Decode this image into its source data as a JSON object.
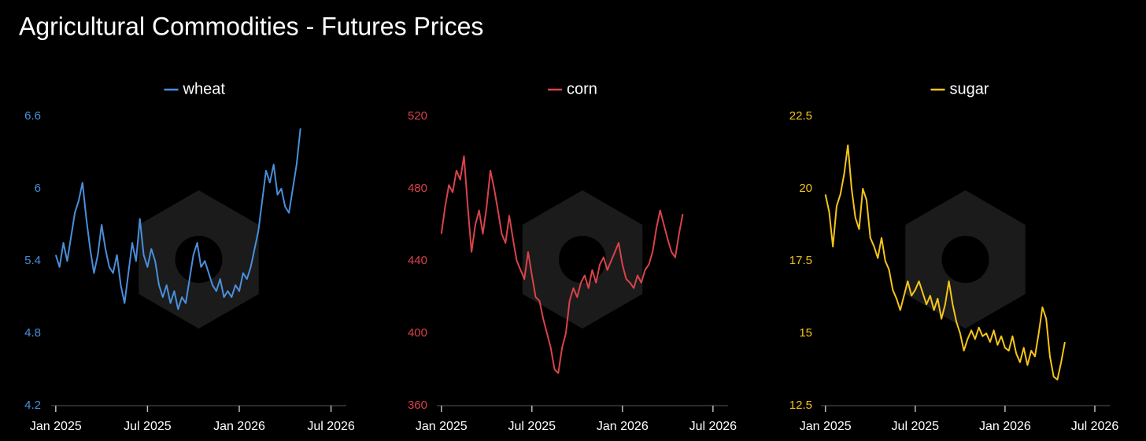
{
  "title": "Agricultural Commodities - Futures Prices",
  "chart_data": [
    {
      "type": "line",
      "x": [
        0,
        0.25,
        0.5,
        0.75,
        1,
        1.25,
        1.5,
        1.75,
        2,
        2.25,
        2.5,
        2.75,
        3,
        3.25,
        3.5,
        3.75,
        4,
        4.25,
        4.5,
        4.75,
        5,
        5.25,
        5.5,
        5.75,
        6,
        6.25,
        6.5,
        6.75,
        7,
        7.25,
        7.5,
        7.75,
        8,
        8.25,
        8.5,
        8.75,
        9,
        9.25,
        9.5,
        9.75,
        10,
        10.25,
        10.5,
        10.75,
        11,
        11.25,
        11.5,
        11.75,
        12,
        12.25,
        12.5,
        12.75,
        13,
        13.25,
        13.5,
        13.75,
        14,
        14.25,
        14.5,
        14.75,
        15,
        15.25,
        15.5,
        15.75,
        16
      ],
      "series": [
        {
          "name": "wheat",
          "color": "#4a8fdb",
          "values": [
            5.45,
            5.35,
            5.55,
            5.4,
            5.6,
            5.8,
            5.9,
            6.05,
            5.75,
            5.5,
            5.3,
            5.45,
            5.7,
            5.5,
            5.35,
            5.3,
            5.45,
            5.2,
            5.05,
            5.3,
            5.55,
            5.4,
            5.75,
            5.45,
            5.35,
            5.5,
            5.4,
            5.2,
            5.1,
            5.2,
            5.05,
            5.15,
            5.0,
            5.1,
            5.05,
            5.25,
            5.45,
            5.55,
            5.35,
            5.4,
            5.3,
            5.2,
            5.15,
            5.25,
            5.1,
            5.15,
            5.1,
            5.2,
            5.15,
            5.3,
            5.25,
            5.35,
            5.5,
            5.65,
            5.9,
            6.15,
            6.05,
            6.2,
            5.95,
            6.0,
            5.85,
            5.8,
            6.0,
            6.2,
            6.5
          ]
        }
      ],
      "xlim": [
        -0.3,
        19
      ],
      "xticks": [
        {
          "value": 0,
          "label": "Jan 2025"
        },
        {
          "value": 6,
          "label": "Jul 2025"
        },
        {
          "value": 12,
          "label": "Jan 2026"
        },
        {
          "value": 18,
          "label": "Jul 2026"
        }
      ],
      "ylim": [
        4.2,
        6.6
      ],
      "yticks": [
        4.2,
        4.8,
        5.4,
        6,
        6.6
      ]
    },
    {
      "type": "line",
      "x": [
        0,
        0.25,
        0.5,
        0.75,
        1,
        1.25,
        1.5,
        1.75,
        2,
        2.25,
        2.5,
        2.75,
        3,
        3.25,
        3.5,
        3.75,
        4,
        4.25,
        4.5,
        4.75,
        5,
        5.25,
        5.5,
        5.75,
        6,
        6.25,
        6.5,
        6.75,
        7,
        7.25,
        7.5,
        7.75,
        8,
        8.25,
        8.5,
        8.75,
        9,
        9.25,
        9.5,
        9.75,
        10,
        10.25,
        10.5,
        10.75,
        11,
        11.25,
        11.5,
        11.75,
        12,
        12.25,
        12.5,
        12.75,
        13,
        13.25,
        13.5,
        13.75,
        14,
        14.25,
        14.5,
        14.75,
        15,
        15.25,
        15.5,
        15.75,
        16
      ],
      "series": [
        {
          "name": "corn",
          "color": "#d9434a",
          "values": [
            455,
            470,
            482,
            478,
            490,
            485,
            498,
            470,
            445,
            460,
            468,
            455,
            470,
            490,
            480,
            468,
            455,
            450,
            465,
            452,
            440,
            435,
            430,
            445,
            432,
            420,
            418,
            408,
            400,
            392,
            380,
            378,
            392,
            400,
            418,
            425,
            420,
            428,
            432,
            425,
            435,
            428,
            438,
            442,
            435,
            440,
            445,
            450,
            438,
            430,
            428,
            425,
            432,
            428,
            435,
            438,
            445,
            458,
            468,
            460,
            452,
            445,
            442,
            455,
            466
          ]
        }
      ],
      "xlim": [
        -0.3,
        19
      ],
      "xticks": [
        {
          "value": 0,
          "label": "Jan 2025"
        },
        {
          "value": 6,
          "label": "Jul 2025"
        },
        {
          "value": 12,
          "label": "Jan 2026"
        },
        {
          "value": 18,
          "label": "Jul 2026"
        }
      ],
      "ylim": [
        360,
        520
      ],
      "yticks": [
        360,
        400,
        440,
        480,
        520
      ]
    },
    {
      "type": "line",
      "x": [
        0,
        0.25,
        0.5,
        0.75,
        1,
        1.25,
        1.5,
        1.75,
        2,
        2.25,
        2.5,
        2.75,
        3,
        3.25,
        3.5,
        3.75,
        4,
        4.25,
        4.5,
        4.75,
        5,
        5.25,
        5.5,
        5.75,
        6,
        6.25,
        6.5,
        6.75,
        7,
        7.25,
        7.5,
        7.75,
        8,
        8.25,
        8.5,
        8.75,
        9,
        9.25,
        9.5,
        9.75,
        10,
        10.25,
        10.5,
        10.75,
        11,
        11.25,
        11.5,
        11.75,
        12,
        12.25,
        12.5,
        12.75,
        13,
        13.25,
        13.5,
        13.75,
        14,
        14.25,
        14.5,
        14.75,
        15,
        15.25,
        15.5,
        15.75,
        16
      ],
      "series": [
        {
          "name": "sugar",
          "color": "#f5c518",
          "values": [
            19.8,
            19.2,
            18.0,
            19.4,
            19.8,
            20.5,
            21.5,
            20.0,
            19.0,
            18.6,
            20.0,
            19.6,
            18.3,
            18.0,
            17.6,
            18.3,
            17.5,
            17.2,
            16.5,
            16.2,
            15.8,
            16.3,
            16.8,
            16.3,
            16.5,
            16.8,
            16.4,
            16.0,
            16.3,
            15.8,
            16.2,
            15.5,
            16.0,
            16.8,
            16.0,
            15.4,
            15.0,
            14.4,
            14.8,
            15.1,
            14.8,
            15.2,
            14.9,
            15.0,
            14.7,
            15.1,
            14.6,
            14.9,
            14.5,
            14.4,
            14.9,
            14.3,
            14.0,
            14.5,
            13.9,
            14.4,
            14.2,
            15.0,
            15.9,
            15.5,
            14.2,
            13.5,
            13.4,
            14.0,
            14.7
          ]
        }
      ],
      "xlim": [
        -0.3,
        19
      ],
      "xticks": [
        {
          "value": 0,
          "label": "Jan 2025"
        },
        {
          "value": 6,
          "label": "Jul 2025"
        },
        {
          "value": 12,
          "label": "Jan 2026"
        },
        {
          "value": 18,
          "label": "Jul 2026"
        }
      ],
      "ylim": [
        12.5,
        22.5
      ],
      "yticks": [
        12.5,
        15,
        17.5,
        20,
        22.5
      ]
    }
  ]
}
